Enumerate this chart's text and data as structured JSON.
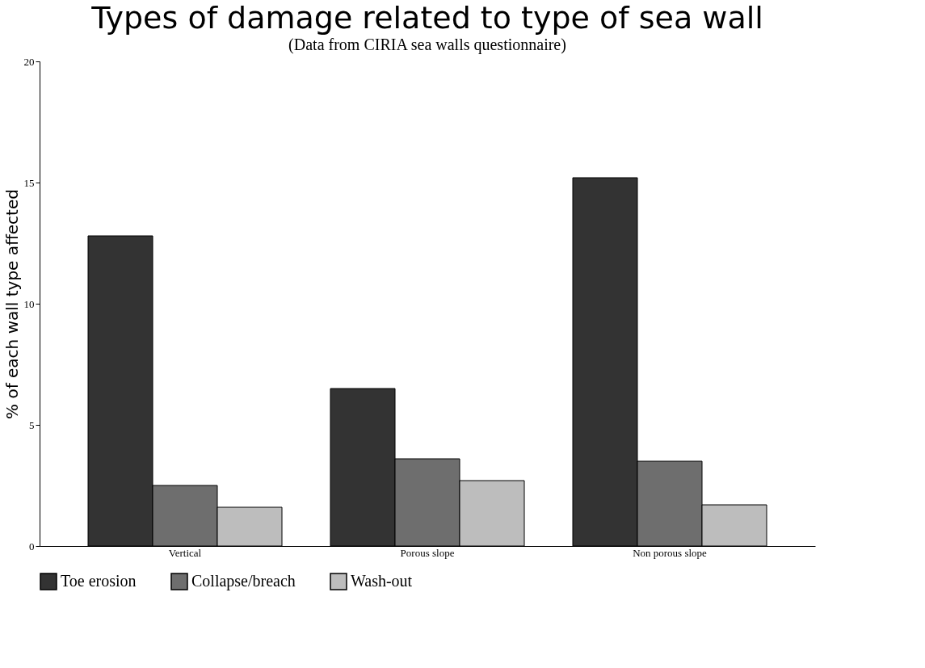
{
  "chart_data": {
    "type": "bar",
    "title": "Types of damage related to type of sea wall",
    "subtitle": "(Data from CIRIA sea walls questionnaire)",
    "ylabel": "% of each wall type affected",
    "categories": [
      "Vertical",
      "Porous slope",
      "Non porous slope"
    ],
    "series": [
      {
        "name": "Toe erosion",
        "color": "#333333",
        "values": [
          12.8,
          6.5,
          15.2
        ]
      },
      {
        "name": "Collapse/breach",
        "color": "#6e6e6e",
        "values": [
          2.5,
          3.6,
          3.5
        ]
      },
      {
        "name": "Wash-out",
        "color": "#bdbdbd",
        "values": [
          1.6,
          2.7,
          1.7
        ]
      }
    ],
    "ylim": [
      0,
      20
    ],
    "yticks": [
      0,
      5,
      10,
      15,
      20
    ],
    "grid": false,
    "legend": "bottom"
  }
}
